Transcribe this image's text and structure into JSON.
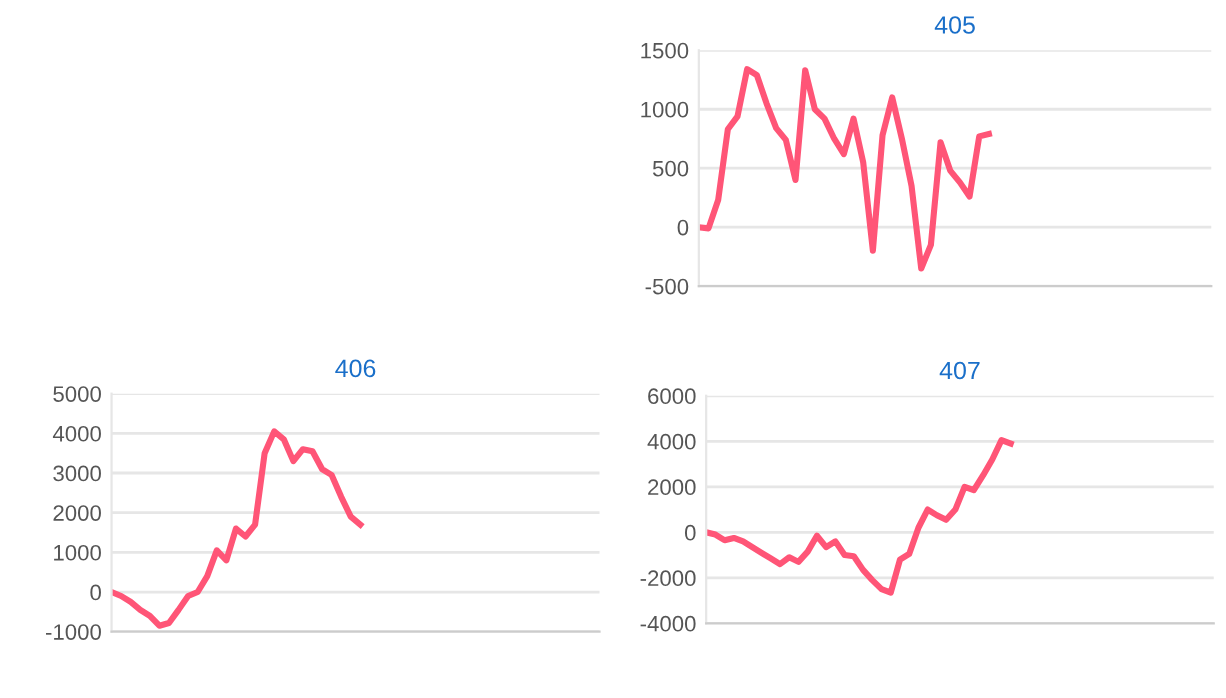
{
  "chart_data": [
    {
      "type": "line",
      "title": "405",
      "categories": [
        null,
        null,
        null,
        null,
        null,
        null,
        null,
        null,
        null,
        null,
        null,
        null,
        null,
        null,
        null,
        null,
        null,
        null,
        null,
        null,
        null,
        null,
        null,
        null,
        null,
        null,
        null,
        null,
        null,
        null,
        null,
        null,
        null,
        null,
        null,
        null,
        null,
        null,
        null,
        null,
        null,
        null,
        null,
        null,
        null,
        null,
        null,
        null,
        null,
        null,
        null,
        null,
        null,
        null
      ],
      "series": [
        {
          "color": "#ff5577",
          "values": [
            0,
            -10,
            230,
            830,
            940,
            1340,
            1290,
            1050,
            840,
            740,
            400,
            1330,
            1000,
            920,
            750,
            620,
            920,
            550,
            -200,
            780,
            1100,
            750,
            350,
            -350,
            -150,
            720,
            480,
            380,
            260,
            770,
            790,
            null,
            null,
            null,
            null,
            null,
            null,
            null,
            null,
            null,
            null,
            null,
            null,
            null,
            null,
            null,
            null,
            null,
            null,
            null,
            null,
            null,
            null,
            null
          ]
        }
      ],
      "ylim": [
        -500,
        1500
      ],
      "yticks": [
        -500,
        0,
        500,
        1000,
        1500
      ],
      "grid": "y",
      "tick_labels": "y",
      "marker": "none",
      "line_style": "solid"
    },
    {
      "type": "line",
      "title": "406",
      "categories": [
        null,
        null,
        null,
        null,
        null,
        null,
        null,
        null,
        null,
        null,
        null,
        null,
        null,
        null,
        null,
        null,
        null,
        null,
        null,
        null,
        null,
        null,
        null,
        null,
        null,
        null,
        null,
        null,
        null,
        null,
        null,
        null,
        null,
        null,
        null,
        null,
        null,
        null,
        null,
        null,
        null,
        null,
        null,
        null,
        null,
        null,
        null,
        null,
        null,
        null,
        null,
        null
      ],
      "series": [
        {
          "color": "#ff5577",
          "values": [
            0,
            -100,
            -250,
            -450,
            -600,
            -850,
            -780,
            -450,
            -100,
            0,
            400,
            1050,
            800,
            1600,
            1400,
            1700,
            3500,
            4050,
            3850,
            3300,
            3600,
            3550,
            3100,
            2950,
            2400,
            1900,
            1700,
            null,
            null,
            null,
            null,
            null,
            null,
            null,
            null,
            null,
            null,
            null,
            null,
            null,
            null,
            null,
            null,
            null,
            null,
            null,
            null,
            null,
            null,
            null,
            null,
            null
          ]
        }
      ],
      "ylim": [
        -1000,
        5000
      ],
      "yticks": [
        -1000,
        0,
        1000,
        2000,
        3000,
        4000,
        5000
      ],
      "grid": "y",
      "tick_labels": "y",
      "marker": "none",
      "line_style": "solid"
    },
    {
      "type": "line",
      "title": "407",
      "categories": [
        null,
        null,
        null,
        null,
        null,
        null,
        null,
        null,
        null,
        null,
        null,
        null,
        null,
        null,
        null,
        null,
        null,
        null,
        null,
        null,
        null,
        null,
        null,
        null,
        null,
        null,
        null,
        null,
        null,
        null,
        null,
        null,
        null,
        null,
        null,
        null,
        null,
        null,
        null,
        null,
        null,
        null,
        null,
        null,
        null,
        null,
        null,
        null,
        null,
        null,
        null,
        null,
        null,
        null,
        null,
        null
      ],
      "series": [
        {
          "color": "#ff5577",
          "values": [
            0,
            -100,
            -350,
            -250,
            -400,
            -650,
            -900,
            -1150,
            -1400,
            -1100,
            -1300,
            -850,
            -150,
            -650,
            -400,
            -1000,
            -1050,
            -1650,
            -2100,
            -2500,
            -2650,
            -1200,
            -950,
            200,
            1000,
            750,
            550,
            1000,
            2000,
            1850,
            2500,
            3200,
            4050,
            3900,
            null,
            null,
            null,
            null,
            null,
            null,
            null,
            null,
            null,
            null,
            null,
            null,
            null,
            null,
            null,
            null,
            null,
            null,
            null,
            null,
            null,
            null
          ]
        }
      ],
      "ylim": [
        -4000,
        6000
      ],
      "yticks": [
        -4000,
        -2000,
        0,
        2000,
        4000,
        6000
      ],
      "grid": "y",
      "tick_labels": "y",
      "marker": "none",
      "line_style": "solid"
    }
  ]
}
